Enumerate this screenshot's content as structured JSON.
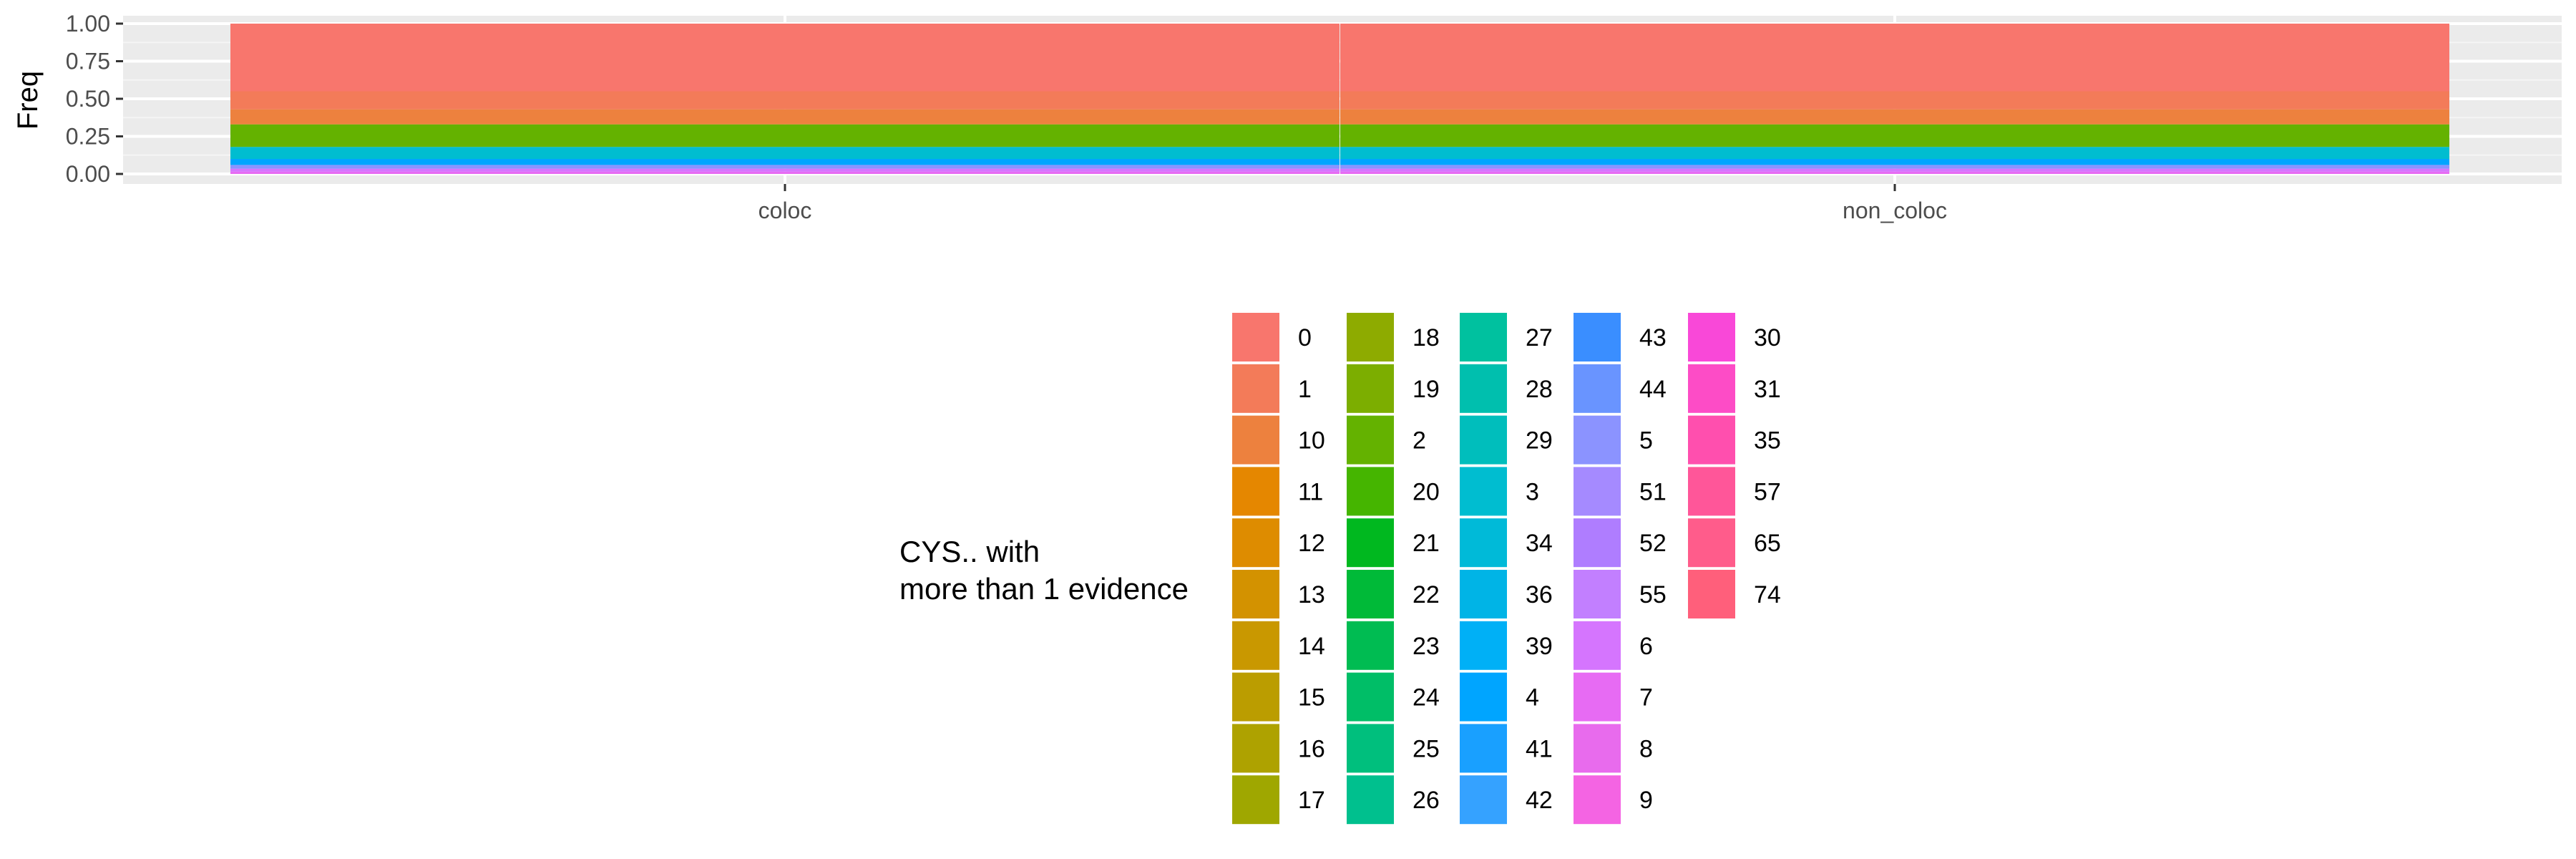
{
  "chart_data": {
    "type": "bar",
    "stacked": true,
    "position": "fill",
    "categories": [
      "coloc",
      "non_coloc"
    ],
    "ylabel": "Freq",
    "xlabel": "",
    "ylim": [
      0,
      1
    ],
    "yticks": [
      "0.00",
      "0.25",
      "0.50",
      "0.75",
      "1.00"
    ],
    "ytick_values": [
      0,
      0.25,
      0.5,
      0.75,
      1.0
    ],
    "grid": true,
    "legend": {
      "title": "CYS.. with\nmore than 1 evidence",
      "placement": "bottom",
      "columns": [
        [
          "0",
          "1",
          "10",
          "11",
          "12",
          "13",
          "14",
          "15",
          "16",
          "17"
        ],
        [
          "18",
          "19",
          "2",
          "20",
          "21",
          "22",
          "23",
          "24",
          "25",
          "26"
        ],
        [
          "27",
          "28",
          "29",
          "3",
          "34",
          "36",
          "39",
          "4",
          "41",
          "42"
        ],
        [
          "43",
          "44",
          "5",
          "51",
          "52",
          "55",
          "6",
          "7",
          "8",
          "9"
        ],
        [
          "30",
          "31",
          "35",
          "57",
          "65",
          "74"
        ]
      ]
    },
    "series": [
      {
        "name": "0",
        "color": "#F8766D",
        "values": [
          0.45,
          0.45
        ]
      },
      {
        "name": "1",
        "color": "#F37B59",
        "values": [
          0.12,
          0.12
        ]
      },
      {
        "name": "10",
        "color": "#ED813E",
        "values": [
          0.1,
          0.1
        ]
      },
      {
        "name": "11",
        "color": "#E58700",
        "values": [
          0,
          0
        ]
      },
      {
        "name": "12",
        "color": "#DE8C00",
        "values": [
          0,
          0
        ]
      },
      {
        "name": "13",
        "color": "#D39200",
        "values": [
          0,
          0
        ]
      },
      {
        "name": "14",
        "color": "#C99800",
        "values": [
          0,
          0
        ]
      },
      {
        "name": "15",
        "color": "#BB9D00",
        "values": [
          0,
          0
        ]
      },
      {
        "name": "16",
        "color": "#AEA200",
        "values": [
          0,
          0
        ]
      },
      {
        "name": "17",
        "color": "#9FA700",
        "values": [
          0,
          0
        ]
      },
      {
        "name": "18",
        "color": "#8EAB00",
        "values": [
          0,
          0
        ]
      },
      {
        "name": "19",
        "color": "#7CAE00",
        "values": [
          0,
          0
        ]
      },
      {
        "name": "2",
        "color": "#64B200",
        "values": [
          0.15,
          0.15
        ]
      },
      {
        "name": "20",
        "color": "#45B500",
        "values": [
          0,
          0
        ]
      },
      {
        "name": "21",
        "color": "#00B81F",
        "values": [
          0,
          0
        ]
      },
      {
        "name": "22",
        "color": "#00BA38",
        "values": [
          0,
          0
        ]
      },
      {
        "name": "23",
        "color": "#00BC52",
        "values": [
          0,
          0
        ]
      },
      {
        "name": "24",
        "color": "#00BE67",
        "values": [
          0,
          0
        ]
      },
      {
        "name": "25",
        "color": "#00BF7D",
        "values": [
          0,
          0
        ]
      },
      {
        "name": "26",
        "color": "#00C08E",
        "values": [
          0,
          0
        ]
      },
      {
        "name": "27",
        "color": "#00C19F",
        "values": [
          0,
          0
        ]
      },
      {
        "name": "28",
        "color": "#00BFAE",
        "values": [
          0,
          0
        ]
      },
      {
        "name": "29",
        "color": "#00BEBC",
        "values": [
          0,
          0
        ]
      },
      {
        "name": "3",
        "color": "#00BDD0",
        "values": [
          0.08,
          0.08
        ]
      },
      {
        "name": "34",
        "color": "#00BAD8",
        "values": [
          0,
          0
        ]
      },
      {
        "name": "36",
        "color": "#00B4E6",
        "values": [
          0,
          0
        ]
      },
      {
        "name": "39",
        "color": "#00B0F6",
        "values": [
          0,
          0
        ]
      },
      {
        "name": "4",
        "color": "#00A5FF",
        "values": [
          0.04,
          0.04
        ]
      },
      {
        "name": "41",
        "color": "#19A0FF",
        "values": [
          0,
          0
        ]
      },
      {
        "name": "42",
        "color": "#35A2FF",
        "values": [
          0,
          0
        ]
      },
      {
        "name": "43",
        "color": "#3A8EFF",
        "values": [
          0,
          0
        ]
      },
      {
        "name": "44",
        "color": "#6994FF",
        "values": [
          0,
          0
        ]
      },
      {
        "name": "5",
        "color": "#8B93FF",
        "values": [
          0.025,
          0.025
        ]
      },
      {
        "name": "51",
        "color": "#A58AFF",
        "values": [
          0,
          0
        ]
      },
      {
        "name": "52",
        "color": "#AF7DFF",
        "values": [
          0,
          0
        ]
      },
      {
        "name": "55",
        "color": "#C27FFF",
        "values": [
          0,
          0
        ]
      },
      {
        "name": "6",
        "color": "#D575FE",
        "values": [
          0.02,
          0.02
        ]
      },
      {
        "name": "7",
        "color": "#E76BF3",
        "values": [
          0.015,
          0.015
        ]
      },
      {
        "name": "8",
        "color": "#E86BED",
        "values": [
          0,
          0
        ]
      },
      {
        "name": "9",
        "color": "#F464E3",
        "values": [
          0,
          0
        ]
      },
      {
        "name": "30",
        "color": "#F948D8",
        "values": [
          0,
          0
        ]
      },
      {
        "name": "31",
        "color": "#FD4CC6",
        "values": [
          0,
          0
        ]
      },
      {
        "name": "35",
        "color": "#FF4FAE",
        "values": [
          0,
          0
        ]
      },
      {
        "name": "57",
        "color": "#FF5699",
        "values": [
          0,
          0
        ]
      },
      {
        "name": "65",
        "color": "#FF5C8B",
        "values": [
          0,
          0
        ]
      },
      {
        "name": "74",
        "color": "#FF5F7B",
        "values": [
          0,
          0
        ]
      }
    ]
  }
}
